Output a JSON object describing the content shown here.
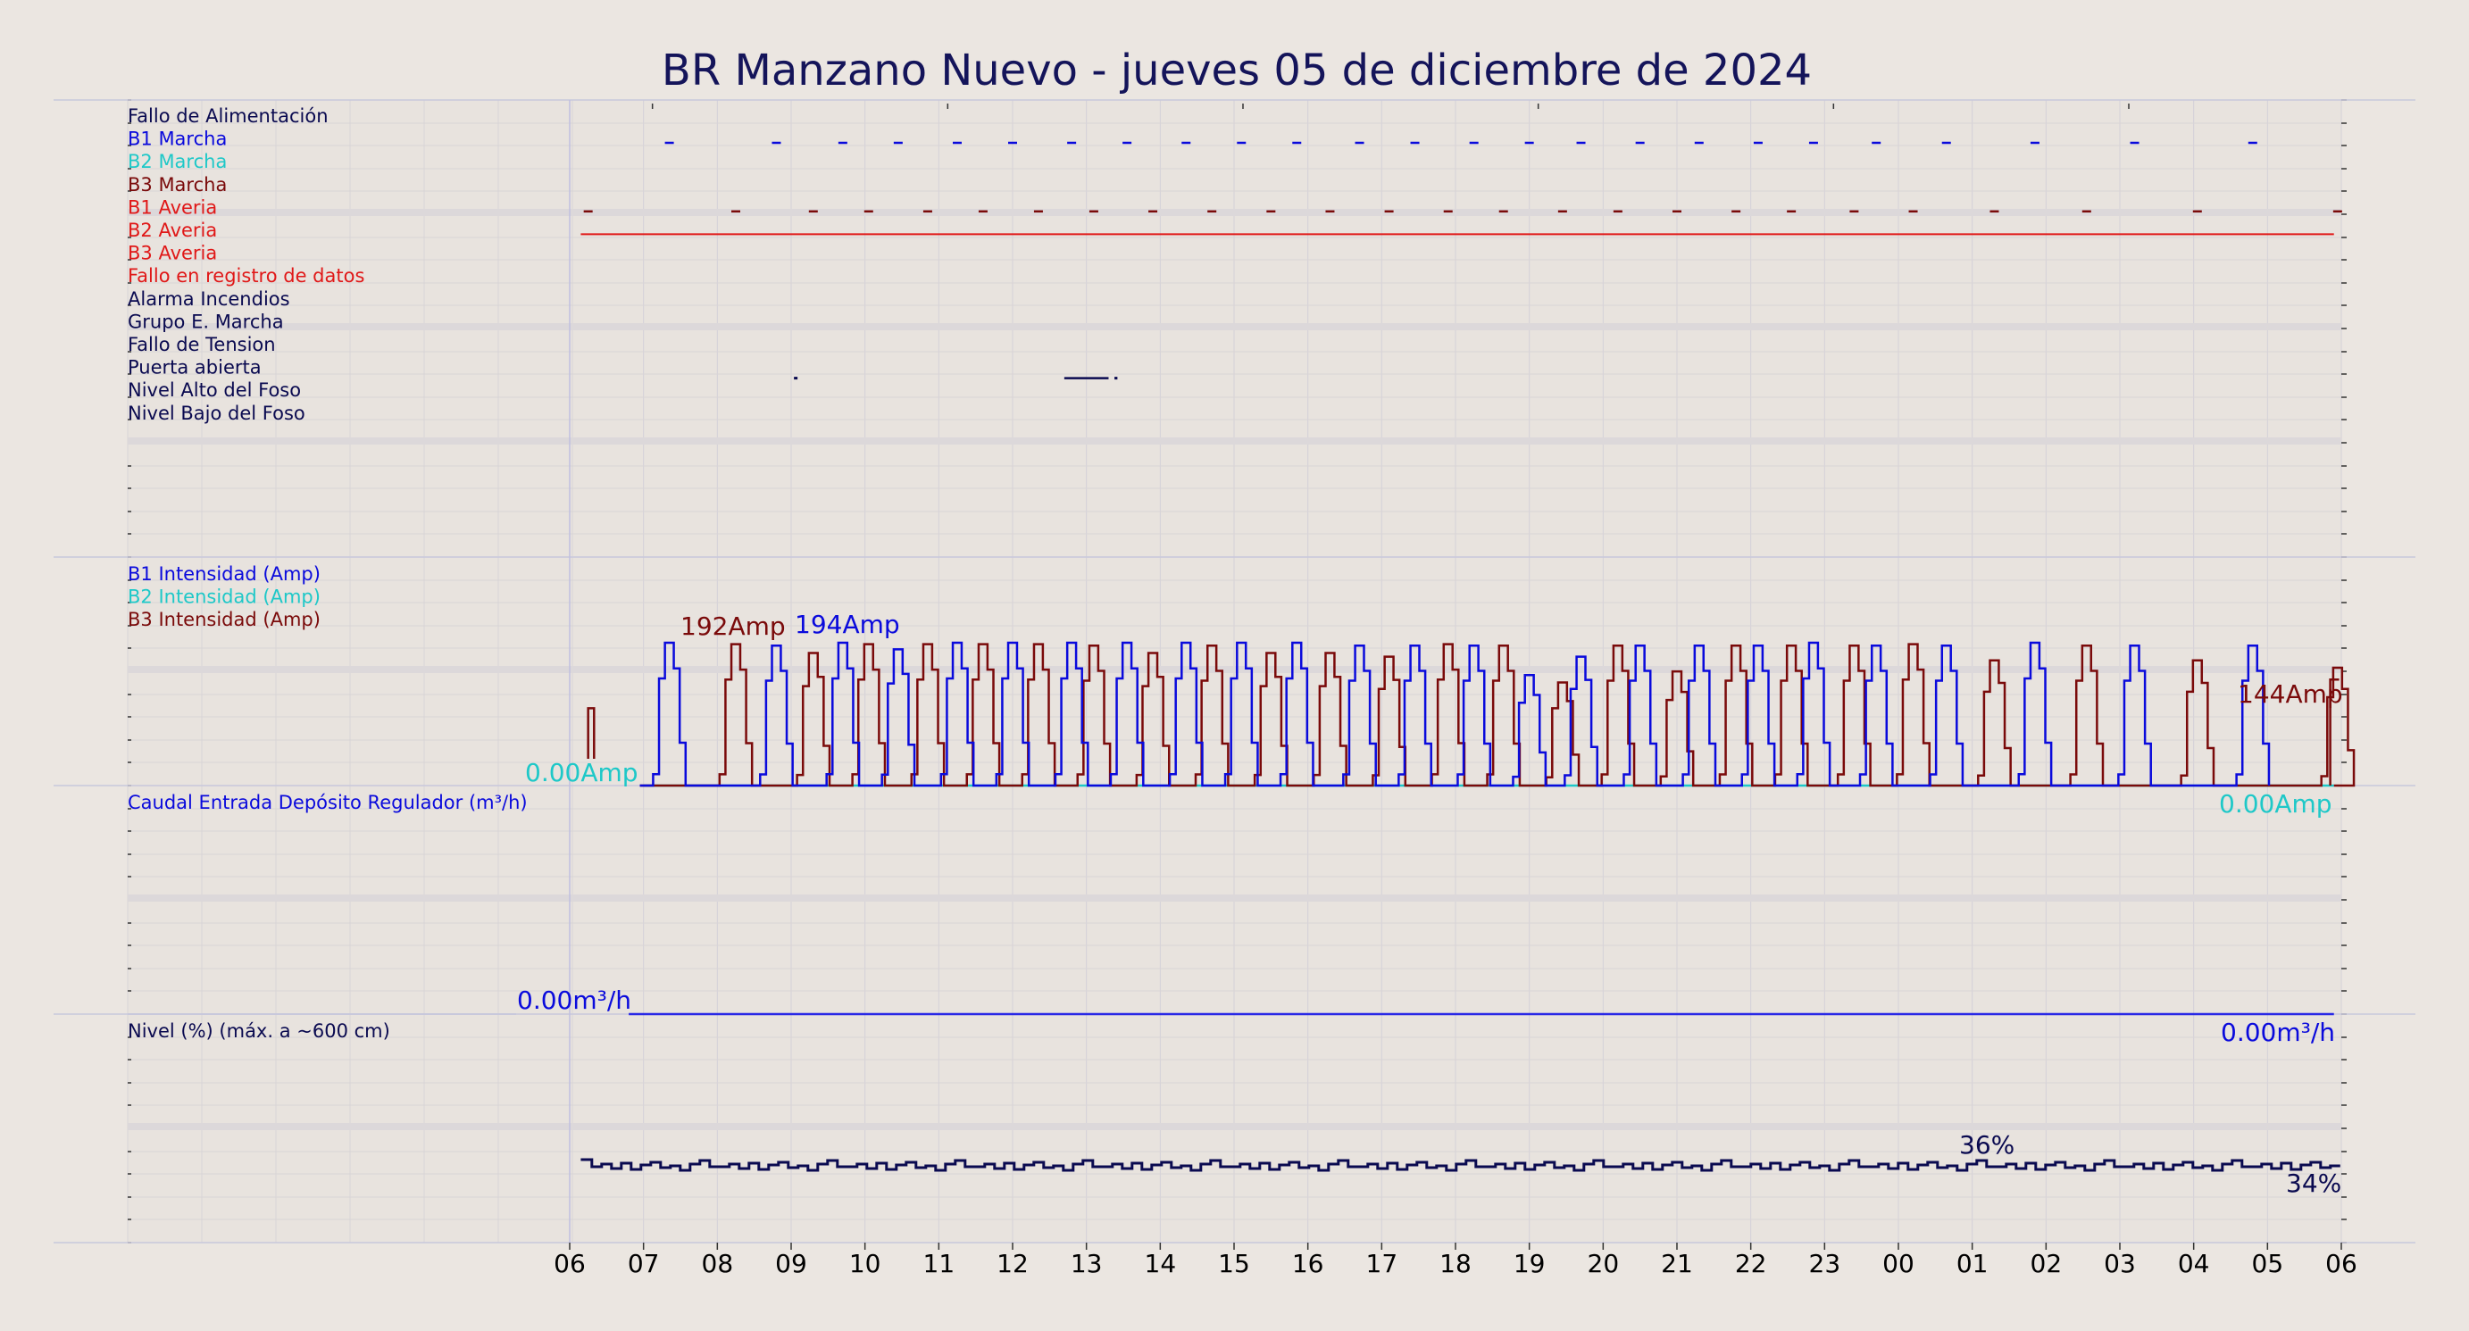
{
  "title": "BR Manzano Nuevo   -   jueves 05 de diciembre de 2024",
  "colors": {
    "background": "#ebe6e1",
    "b1": "#0a0adc",
    "b2": "#1ec8c8",
    "b3": "#7a0a0a",
    "alarm_red": "#e01818",
    "navy": "#0a0a50",
    "flow": "#2828e6",
    "grid": "#c8c8dc"
  },
  "x_axis": {
    "ticks": [
      "06",
      "07",
      "08",
      "09",
      "10",
      "11",
      "12",
      "13",
      "14",
      "15",
      "16",
      "17",
      "18",
      "19",
      "20",
      "21",
      "22",
      "23",
      "00",
      "01",
      "02",
      "03",
      "04",
      "05",
      "06"
    ]
  },
  "panels": {
    "digital": {
      "labels": [
        {
          "text": "Fallo de Alimentación",
          "color": "#0a0a50"
        },
        {
          "text": "B1 Marcha",
          "color": "#0a0adc"
        },
        {
          "text": "B2 Marcha",
          "color": "#1ec8c8"
        },
        {
          "text": "B3 Marcha",
          "color": "#7a0a0a"
        },
        {
          "text": "B1 Averia",
          "color": "#e01818"
        },
        {
          "text": "B2 Averia",
          "color": "#e01818"
        },
        {
          "text": "B3 Averia",
          "color": "#e01818"
        },
        {
          "text": "Fallo en registro de datos",
          "color": "#e01818"
        },
        {
          "text": "Alarma Incendios",
          "color": "#0a0a50"
        },
        {
          "text": "Grupo E. Marcha",
          "color": "#0a0a50"
        },
        {
          "text": "Fallo de Tension",
          "color": "#0a0a50"
        },
        {
          "text": "Puerta abierta",
          "color": "#0a0a50"
        },
        {
          "text": "Nivel Alto del Foso",
          "color": "#0a0a50"
        },
        {
          "text": "Nivel Bajo del Foso",
          "color": "#0a0a50"
        }
      ]
    },
    "current": {
      "labels": [
        {
          "text": "B1 Intensidad (Amp)",
          "color": "#0a0adc"
        },
        {
          "text": "B2 Intensidad (Amp)",
          "color": "#1ec8c8"
        },
        {
          "text": "B3 Intensidad (Amp)",
          "color": "#7a0a0a"
        }
      ],
      "annotations": {
        "b3_max": "192Amp",
        "b1_max": "194Amp",
        "b2_start": "0.00Amp",
        "b3_end": "144Amp",
        "b2_end": "0.00Amp"
      }
    },
    "flow": {
      "label": "Caudal Entrada Depósito Regulador (m³/h)",
      "annotations": {
        "start": "0.00m³/h",
        "end": "0.00m³/h"
      }
    },
    "level": {
      "label": "Nivel (%) (máx. a ~600 cm)",
      "annotations": {
        "max": "36%",
        "end": "34%"
      }
    }
  },
  "chart_data": [
    {
      "type": "line",
      "title": "",
      "x_unit": "hour",
      "x_range": [
        6,
        30
      ],
      "series": [
        {
          "name": "B1 Marcha",
          "label": "B1 Marcha",
          "on_at": [
            7.35,
            8.8,
            9.7,
            10.45,
            11.25,
            12.0,
            12.8,
            13.55,
            14.35,
            15.1,
            15.85,
            16.7,
            17.45,
            18.25,
            19.0,
            19.7,
            20.5,
            21.3,
            22.1,
            22.85,
            23.7,
            24.65,
            25.85,
            27.2,
            28.8
          ]
        },
        {
          "name": "B3 Marcha",
          "label": "B3 Marcha",
          "on_at": [
            6.25,
            8.25,
            9.3,
            10.05,
            10.85,
            11.6,
            12.35,
            13.1,
            13.9,
            14.7,
            15.5,
            16.3,
            17.1,
            17.9,
            18.65,
            19.45,
            20.2,
            21.0,
            21.8,
            22.55,
            23.4,
            24.2,
            25.3,
            26.55,
            28.05,
            29.95
          ]
        },
        {
          "name": "B2 Averia",
          "label": "B2 Averia",
          "active_range": [
            6.15,
            29.9
          ]
        },
        {
          "name": "Puerta abierta",
          "label": "Puerta abierta",
          "on_at": [
            9.05,
            12.7,
            13.4
          ]
        }
      ]
    },
    {
      "type": "line",
      "title": "",
      "y_unit": "Amp",
      "ylim": [
        0,
        200
      ],
      "series": [
        {
          "name": "B1 Intensidad (Amp)",
          "label": "B1 Intensidad (Amp)",
          "peaks": [
            [
              7.35,
              194
            ],
            [
              8.8,
              190
            ],
            [
              9.7,
              194
            ],
            [
              10.45,
              185
            ],
            [
              11.25,
              194
            ],
            [
              12.0,
              194
            ],
            [
              12.8,
              194
            ],
            [
              13.55,
              194
            ],
            [
              14.35,
              194
            ],
            [
              15.1,
              194
            ],
            [
              15.85,
              194
            ],
            [
              16.7,
              190
            ],
            [
              17.45,
              190
            ],
            [
              18.25,
              190
            ],
            [
              19.0,
              150
            ],
            [
              19.7,
              175
            ],
            [
              20.5,
              190
            ],
            [
              21.3,
              190
            ],
            [
              22.1,
              190
            ],
            [
              22.85,
              194
            ],
            [
              23.7,
              190
            ],
            [
              24.65,
              190
            ],
            [
              25.85,
              194
            ],
            [
              27.2,
              190
            ],
            [
              28.8,
              190
            ]
          ],
          "max": 194
        },
        {
          "name": "B2 Intensidad (Amp)",
          "label": "B2 Intensidad (Amp)",
          "values_all_zero": 0
        },
        {
          "name": "B3 Intensidad (Amp)",
          "label": "B3 Intensidad (Amp)",
          "peaks": [
            [
              6.25,
              130
            ],
            [
              8.25,
              192
            ],
            [
              9.3,
              180
            ],
            [
              10.05,
              192
            ],
            [
              10.85,
              192
            ],
            [
              11.6,
              192
            ],
            [
              12.35,
              192
            ],
            [
              13.1,
              190
            ],
            [
              13.9,
              180
            ],
            [
              14.7,
              190
            ],
            [
              15.5,
              180
            ],
            [
              16.3,
              180
            ],
            [
              17.1,
              175
            ],
            [
              17.9,
              192
            ],
            [
              18.65,
              190
            ],
            [
              19.45,
              140
            ],
            [
              20.2,
              190
            ],
            [
              21.0,
              155
            ],
            [
              21.8,
              190
            ],
            [
              22.55,
              190
            ],
            [
              23.4,
              190
            ],
            [
              24.2,
              192
            ],
            [
              25.3,
              170
            ],
            [
              26.55,
              190
            ],
            [
              28.05,
              170
            ],
            [
              29.95,
              160
            ]
          ],
          "max": 192,
          "last": 144
        }
      ]
    },
    {
      "type": "line",
      "title": "",
      "series": [
        {
          "name": "Caudal Entrada Depósito Regulador (m³/h)",
          "label": "Caudal Entrada Depósito Regulador (m³/h)",
          "value": 0
        }
      ]
    },
    {
      "type": "line",
      "title": "",
      "y_unit": "%",
      "series": [
        {
          "name": "Nivel (%)",
          "label": "Nivel (%) (máx. a ~600 cm)",
          "approx": 35,
          "max": 36,
          "last": 34
        }
      ]
    }
  ]
}
